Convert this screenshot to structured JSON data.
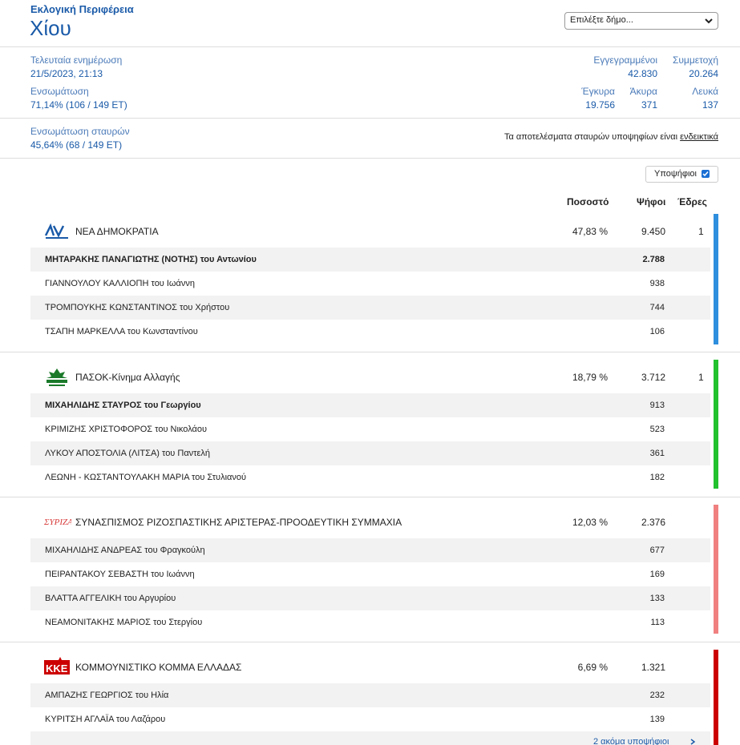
{
  "header": {
    "region_label": "Εκλογική Περιφέρεια",
    "title": "Χίου",
    "municipality_select": {
      "selected": "Επιλέξτε δήμο...",
      "icon": "chevron-down-icon"
    }
  },
  "stats": {
    "last_update_label": "Τελευταία ενημέρωση",
    "last_update_value": "21/5/2023, 21:13",
    "integration_label": "Ενσωμάτωση",
    "integration_value": "71,14% (106 / 149 ΕΤ)",
    "registered_label": "Εγγεγραμμένοι",
    "registered_value": "42.830",
    "turnout_label": "Συμμετοχή",
    "turnout_value": "20.264",
    "valid_label": "Έγκυρα",
    "valid_value": "19.756",
    "invalid_label": "Άκυρα",
    "invalid_value": "371",
    "blank_label": "Λευκά",
    "blank_value": "137"
  },
  "cross": {
    "label": "Ενσωμάτωση σταυρών",
    "value": "45,64% (68 / 149 ΕΤ)",
    "note_prefix": "Τα αποτελέσματα σταυρών υποψηφίων είναι ",
    "note_link": "ενδεικτικά"
  },
  "candidates_toggle": {
    "label": "Υποψήφιοι",
    "checked": true
  },
  "columns": {
    "percent": "Ποσοστό",
    "votes": "Ψήφοι",
    "seats": "Έδρες"
  },
  "parties": [
    {
      "name": "ΝΕΑ ΔΗΜΟΚΡΑΤΙΑ",
      "percent": "47,83 %",
      "votes": "9.450",
      "seats": "1",
      "color": "#2e8fde",
      "logo_text": "ΝΔ",
      "candidates": [
        {
          "name": "ΜΗΤΑΡΑΚΗΣ ΠΑΝΑΓΙΩΤΗΣ (ΝΟΤΗΣ) του Αντωνίου",
          "votes": "2.788"
        },
        {
          "name": "ΓΙΑΝΝΟΥΛΟΥ ΚΑΛΛΙΟΠΗ του Ιωάννη",
          "votes": "938"
        },
        {
          "name": "ΤΡΟΜΠΟΥΚΗΣ ΚΩΝΣΤΑΝΤΙΝΟΣ του Χρήστου",
          "votes": "744"
        },
        {
          "name": "ΤΣΑΠΗ ΜΑΡΚΕΛΛΑ του Κωνσταντίνου",
          "votes": "106"
        }
      ]
    },
    {
      "name": "ΠΑΣΟΚ-Κίνημα Αλλαγής",
      "percent": "18,79 %",
      "votes": "3.712",
      "seats": "1",
      "color": "#22c12e",
      "logo_text": "ΠΑΣΟΚ",
      "candidates": [
        {
          "name": "ΜΙΧΑΗΛΙΔΗΣ ΣΤΑΥΡΟΣ του Γεωργίου",
          "votes": "913"
        },
        {
          "name": "ΚΡΙΜΙΖΗΣ ΧΡΙΣΤΟΦΟΡΟΣ του Νικολάου",
          "votes": "523"
        },
        {
          "name": "ΛΥΚΟΥ ΑΠΟΣΤΟΛΙΑ (ΛΙΤΣΑ) του Παντελή",
          "votes": "361"
        },
        {
          "name": "ΛΕΩΝΗ - ΚΩΣΤΑΝΤΟΥΛΑΚΗ ΜΑΡΙΑ του Στυλιανού",
          "votes": "182"
        }
      ]
    },
    {
      "name": "ΣΥΝΑΣΠΙΣΜΟΣ ΡΙΖΟΣΠΑΣΤΙΚΗΣ ΑΡΙΣΤΕΡΑΣ-ΠΡΟΟΔΕΥΤΙΚΗ ΣΥΜΜΑΧΙΑ",
      "percent": "12,03 %",
      "votes": "2.376",
      "seats": "",
      "color": "#f08080",
      "logo_text": "ΣΥΡΙΖΑ",
      "candidates": [
        {
          "name": "ΜΙΧΑΗΛΙΔΗΣ ΑΝΔΡΕΑΣ του Φραγκούλη",
          "votes": "677"
        },
        {
          "name": "ΠΕΙΡΑΝΤΑΚΟΥ ΣΕΒΑΣΤΗ του Ιωάννη",
          "votes": "169"
        },
        {
          "name": "ΒΛΑΤΤΑ ΑΓΓΕΛΙΚΗ του Αργυρίου",
          "votes": "133"
        },
        {
          "name": "ΝΕΑΜΟΝΙΤΑΚΗΣ ΜΑΡΙΟΣ του Στεργίου",
          "votes": "113"
        }
      ]
    },
    {
      "name": "ΚΟΜΜΟΥΝΙΣΤΙΚΟ ΚΟΜΜΑ ΕΛΛΑΔΑΣ",
      "percent": "6,69 %",
      "votes": "1.321",
      "seats": "",
      "color": "#cc0000",
      "logo_text": "ΚΚΕ",
      "candidates": [
        {
          "name": "ΑΜΠΑΖΗΣ ΓΕΩΡΓΙΟΣ του Ηλία",
          "votes": "232"
        },
        {
          "name": "ΚΥΡΙΤΣΗ ΑΓΛΑΪΑ του Λαζάρου",
          "votes": "139"
        }
      ],
      "more_link": "2 ακόμα υποψήφιοι"
    }
  ]
}
